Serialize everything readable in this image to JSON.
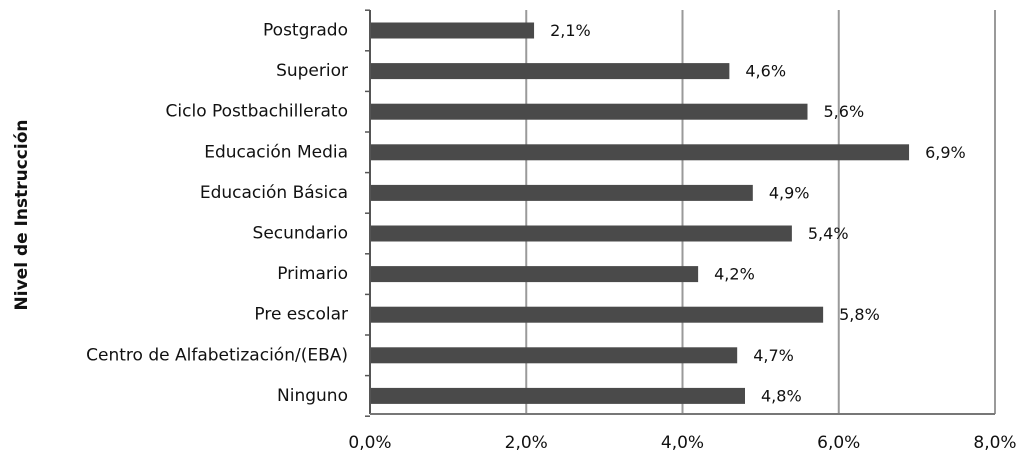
{
  "chart_data": {
    "type": "bar",
    "orientation": "horizontal",
    "title": "",
    "xlabel": "",
    "ylabel": "Nivel de Instrucción",
    "categories": [
      "Postgrado",
      "Superior",
      "Ciclo Postbachillerato",
      "Educación Media",
      "Educación Básica",
      "Secundario",
      "Primario",
      "Pre escolar",
      "Centro de Alfabetización/(EBA)",
      "Ninguno"
    ],
    "values": [
      2.1,
      4.6,
      5.6,
      6.9,
      4.9,
      5.4,
      4.2,
      5.8,
      4.7,
      4.8
    ],
    "data_labels": [
      "2,1%",
      "4,6%",
      "5,6%",
      "6,9%",
      "4,9%",
      "5,4%",
      "4,2%",
      "5,8%",
      "4,7%",
      "4,8%"
    ],
    "xlim": [
      0,
      8
    ],
    "xticks": [
      0,
      2,
      4,
      6,
      8
    ],
    "xtick_labels": [
      "0,0%",
      "2,0%",
      "4,0%",
      "6,0%",
      "8,0%"
    ],
    "grid": "vertical",
    "legend": "none",
    "bar_color": "#4a4a4a",
    "grid_color": "#9a9a9a"
  }
}
